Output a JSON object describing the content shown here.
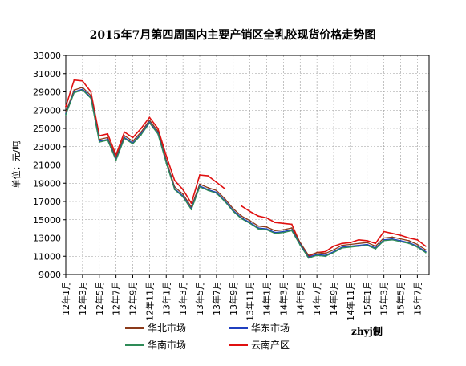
{
  "chart_data": {
    "type": "line",
    "title": "2015年7月第四周国内主要产销区全乳胶现货价格走势图",
    "ylabel": "单位：元/吨",
    "xlabel": "",
    "ylim": [
      9000,
      33000
    ],
    "yticks": [
      9000,
      11000,
      13000,
      15000,
      17000,
      19000,
      21000,
      23000,
      25000,
      27000,
      29000,
      31000,
      33000
    ],
    "xticks": [
      "12年1月",
      "12年3月",
      "12年5月",
      "12年7月",
      "12年9月",
      "12年11月",
      "13年1月",
      "13年3月",
      "13年5月",
      "13年7月",
      "13年9月",
      "13年11月",
      "14年1月",
      "14年3月",
      "14年5月",
      "14年7月",
      "14年9月",
      "14年11月",
      "15年1月",
      "15年3月",
      "15年5月",
      "15年7月"
    ],
    "x_month_index": [
      0,
      1,
      2,
      3,
      4,
      5,
      6,
      7,
      8,
      9,
      10,
      11,
      12,
      13,
      14,
      15,
      16,
      17,
      18,
      19,
      20,
      21,
      22,
      23,
      24,
      25,
      26,
      27,
      28,
      29,
      30,
      31,
      32,
      33,
      34,
      35,
      36,
      37,
      38,
      39,
      40,
      41,
      42,
      43
    ],
    "x_range": [
      0,
      43.4
    ],
    "grid": true,
    "legend_position": "bottom",
    "credit": "zhyj制",
    "series": [
      {
        "name": "华北市场",
        "color": "#8B3A1A",
        "values": [
          26800,
          29200,
          29500,
          28600,
          23800,
          24000,
          21800,
          24200,
          23600,
          24600,
          25900,
          24700,
          21500,
          18600,
          17800,
          16400,
          18900,
          18500,
          18200,
          17300,
          16200,
          15400,
          14900,
          14300,
          14200,
          13800,
          13900,
          14100,
          12500,
          11100,
          11400,
          11300,
          11700,
          12200,
          12300,
          12400,
          12500,
          12100,
          13000,
          13100,
          12900,
          12700,
          12300,
          11700
        ]
      },
      {
        "name": "华东市场",
        "color": "#1F3FBF",
        "values": [
          26600,
          29000,
          29300,
          28400,
          23600,
          23800,
          21600,
          24000,
          23400,
          24400,
          25700,
          24500,
          21300,
          18400,
          17600,
          16200,
          18700,
          18300,
          18000,
          17100,
          16000,
          15200,
          14700,
          14100,
          14000,
          13600,
          13700,
          13900,
          12300,
          10900,
          11200,
          11100,
          11500,
          12000,
          12100,
          12200,
          12300,
          11900,
          12800,
          12900,
          12700,
          12500,
          12100,
          11500
        ]
      },
      {
        "name": "华南市场",
        "color": "#2E8B57",
        "values": [
          26500,
          28900,
          29200,
          28300,
          23500,
          23700,
          21500,
          23900,
          23300,
          24300,
          25600,
          24400,
          21200,
          18300,
          17500,
          16100,
          18600,
          18200,
          17900,
          17000,
          15900,
          15100,
          14600,
          14000,
          13900,
          13500,
          13600,
          13800,
          12200,
          10800,
          11100,
          11000,
          11400,
          11900,
          12000,
          12100,
          12200,
          11800,
          12700,
          12800,
          12600,
          12400,
          12000,
          11400
        ]
      },
      {
        "name": "云南产区",
        "color": "#E01010",
        "values": [
          27400,
          30300,
          30200,
          29000,
          24200,
          24400,
          22100,
          24600,
          24000,
          25000,
          26200,
          25000,
          22000,
          19300,
          18300,
          16800,
          19900,
          19800,
          19100,
          18400,
          null,
          16500,
          15900,
          15400,
          15200,
          14700,
          14600,
          14500,
          12400,
          11000,
          11400,
          11500,
          12100,
          12400,
          12500,
          12800,
          12700,
          12400,
          13700,
          13500,
          13300,
          13000,
          12800,
          12100
        ]
      }
    ]
  }
}
